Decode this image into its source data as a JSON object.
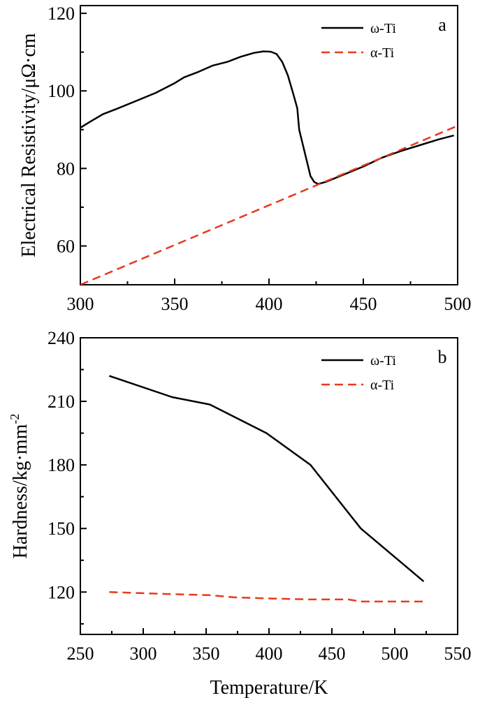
{
  "chart_data": [
    {
      "type": "line",
      "panel_label": "a",
      "xlabel": "",
      "ylabel": "Electrical Resistivity/μΩ·cm",
      "xlim": [
        300,
        500
      ],
      "ylim": [
        50,
        122
      ],
      "xticks": [
        300,
        350,
        400,
        450,
        500
      ],
      "yticks": [
        60,
        80,
        100,
        120
      ],
      "legend_position": "top-right",
      "series": [
        {
          "name": "ω-Ti",
          "style": "solid",
          "color": "#000000",
          "x": [
            300,
            305,
            312,
            320,
            330,
            340,
            350,
            355,
            362,
            370,
            378,
            385,
            392,
            397,
            401,
            404,
            407,
            410,
            413,
            415,
            416,
            418,
            420,
            422,
            424,
            426,
            430,
            440,
            450,
            460,
            470,
            480,
            490,
            498
          ],
          "y": [
            90.5,
            92,
            94,
            95.5,
            97.5,
            99.5,
            102,
            103.5,
            104.8,
            106.5,
            107.5,
            108.8,
            109.8,
            110.2,
            110.1,
            109.5,
            107.5,
            104,
            99,
            95.5,
            90,
            86,
            82,
            78,
            76.5,
            76,
            76.5,
            78.5,
            80.5,
            82.8,
            84.5,
            86,
            87.5,
            88.5
          ]
        },
        {
          "name": "α-Ti",
          "style": "dashed",
          "color": "#e8391d",
          "x": [
            300,
            500
          ],
          "y": [
            50,
            91
          ]
        }
      ]
    },
    {
      "type": "line",
      "panel_label": "b",
      "xlabel": "Temperature/K",
      "ylabel": "Hardness/kg·mm⁻²",
      "ylabel_base": "Hardness/kg·mm",
      "ylabel_superscript": "-2",
      "xlim": [
        250,
        550
      ],
      "ylim": [
        100,
        240
      ],
      "xticks": [
        250,
        300,
        350,
        400,
        450,
        500,
        550
      ],
      "yticks": [
        120,
        150,
        180,
        210,
        240
      ],
      "legend_position": "top-right",
      "series": [
        {
          "name": "ω-Ti",
          "style": "solid",
          "color": "#000000",
          "x": [
            273,
            323,
            353,
            398,
            433,
            473,
            523
          ],
          "y": [
            222,
            212,
            208.5,
            195,
            180,
            150,
            125
          ]
        },
        {
          "name": "α-Ti",
          "style": "dashed",
          "color": "#e8391d",
          "x": [
            273,
            298,
            323,
            353,
            373,
            398,
            433,
            463,
            473,
            498,
            523
          ],
          "y": [
            120,
            119.5,
            119,
            118.5,
            117.5,
            117,
            116.5,
            116.5,
            115.5,
            115.5,
            115.5
          ]
        }
      ]
    }
  ]
}
